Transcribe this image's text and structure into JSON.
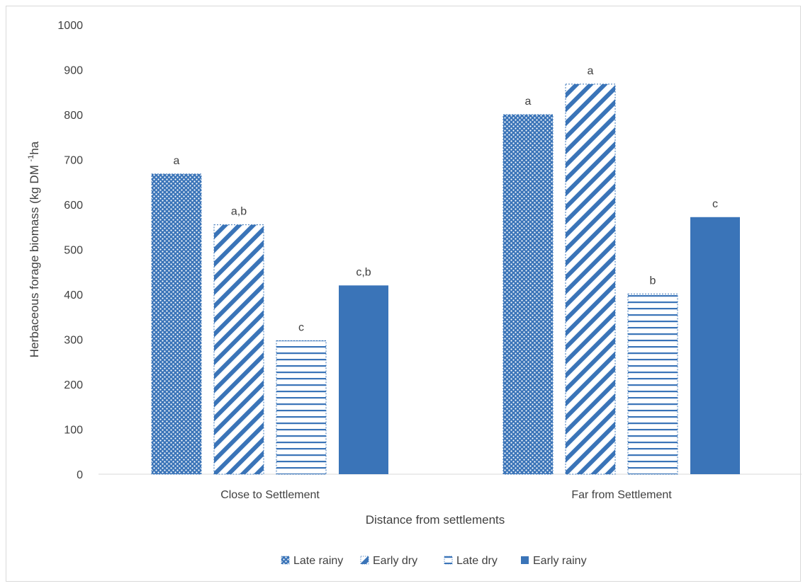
{
  "chart_data": {
    "type": "bar",
    "categories": [
      "Close to Settlement",
      "Far from Settlement"
    ],
    "series": [
      {
        "name": "Late rainy",
        "values": [
          668,
          800
        ],
        "labels": [
          "a",
          "a"
        ],
        "pattern": "dots"
      },
      {
        "name": "Early dry",
        "values": [
          555,
          868
        ],
        "labels": [
          "a,b",
          "a"
        ],
        "pattern": "diagonal"
      },
      {
        "name": "Late dry",
        "values": [
          297,
          401
        ],
        "labels": [
          "c",
          "b"
        ],
        "pattern": "horizontal"
      },
      {
        "name": "Early rainy",
        "values": [
          420,
          572
        ],
        "labels": [
          "c,b",
          "c"
        ],
        "pattern": "solid"
      }
    ],
    "ylabel": "Herbaceous forage biomass (kg DM",
    "ylabel_sup": "-1",
    "ylabel_tail": "ha",
    "xlabel": "Distance from settlements",
    "ylim": [
      0,
      1000
    ],
    "yticks": [
      0,
      100,
      200,
      300,
      400,
      500,
      600,
      700,
      800,
      900,
      1000
    ],
    "grid": false,
    "legend_position": "bottom",
    "colors": {
      "bar": "#3a74b8",
      "axis": "#d9d9d9",
      "text": "#404040"
    }
  }
}
